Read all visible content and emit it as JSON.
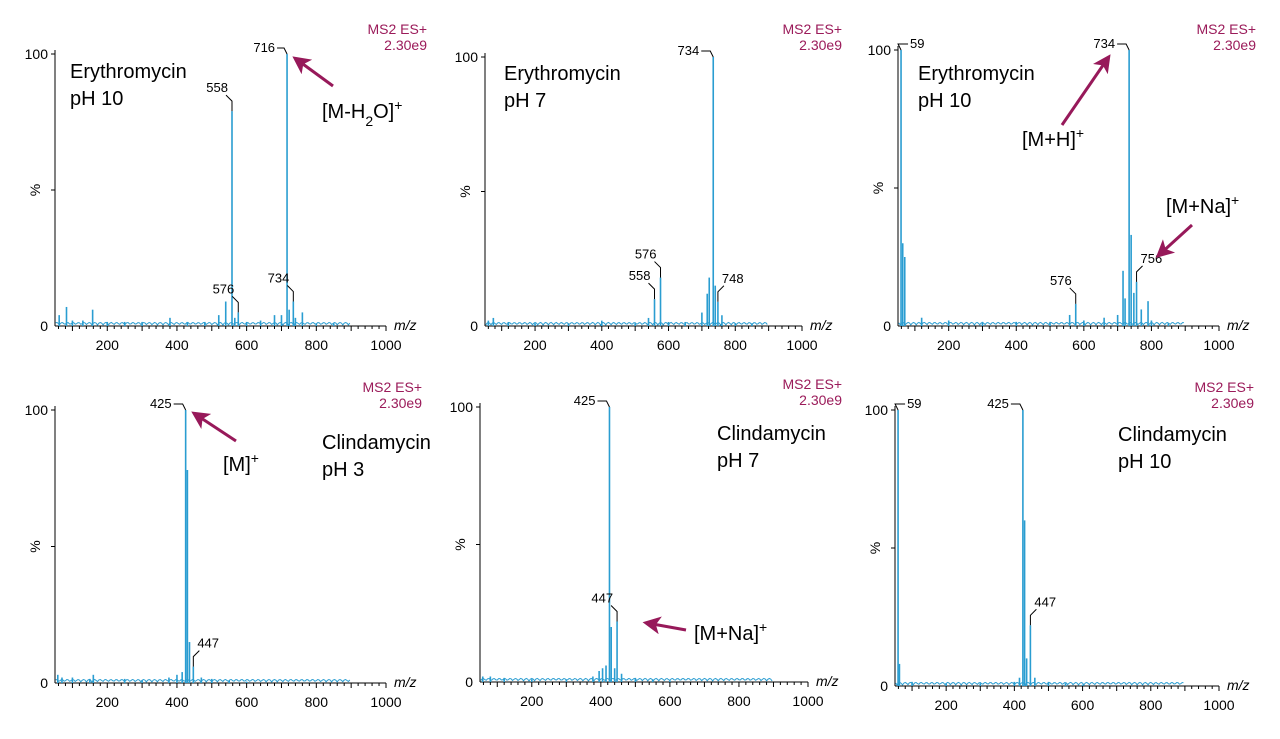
{
  "colors": {
    "trace": "#2a9dd1",
    "accent": "#97195a",
    "axis": "#000000"
  },
  "chart_data": [
    {
      "type": "line",
      "compound": "Erythromycin",
      "condition": "pH 10",
      "mode_label": "MS2 ES+",
      "intensity_label": "2.30e9",
      "xlabel": "m/z",
      "ylabel": "%",
      "xlim": [
        50,
        1000
      ],
      "ylim": [
        0,
        100
      ],
      "x_ticks": [
        200,
        400,
        600,
        800,
        1000
      ],
      "y_ticks": [
        0,
        100
      ],
      "peaks": [
        {
          "x": 62,
          "y": 4
        },
        {
          "x": 83,
          "y": 7
        },
        {
          "x": 100,
          "y": 2
        },
        {
          "x": 130,
          "y": 2
        },
        {
          "x": 158,
          "y": 6
        },
        {
          "x": 200,
          "y": 1.5
        },
        {
          "x": 250,
          "y": 1.5
        },
        {
          "x": 300,
          "y": 1.5
        },
        {
          "x": 380,
          "y": 3
        },
        {
          "x": 430,
          "y": 1.5
        },
        {
          "x": 480,
          "y": 1.5
        },
        {
          "x": 520,
          "y": 4
        },
        {
          "x": 540,
          "y": 9
        },
        {
          "x": 558,
          "y": 79
        },
        {
          "x": 566,
          "y": 3
        },
        {
          "x": 576,
          "y": 5
        },
        {
          "x": 600,
          "y": 1.5
        },
        {
          "x": 640,
          "y": 2
        },
        {
          "x": 680,
          "y": 4
        },
        {
          "x": 700,
          "y": 4
        },
        {
          "x": 716,
          "y": 100
        },
        {
          "x": 722,
          "y": 6
        },
        {
          "x": 734,
          "y": 9
        },
        {
          "x": 740,
          "y": 3
        },
        {
          "x": 760,
          "y": 5
        },
        {
          "x": 800,
          "y": 1
        },
        {
          "x": 850,
          "y": 1
        }
      ],
      "peak_labels": [
        {
          "x": 716,
          "y": 100,
          "text": "716"
        },
        {
          "x": 558,
          "y": 79,
          "text": "558"
        },
        {
          "x": 576,
          "y": 5,
          "text": "576"
        },
        {
          "x": 734,
          "y": 9,
          "text": "734"
        }
      ],
      "annotations": [
        {
          "text": "[M-H",
          "sub": "2",
          "rest": "O]",
          "sup": "+",
          "target_mz": 716,
          "target_y": 100
        }
      ]
    },
    {
      "type": "line",
      "compound": "Erythromycin",
      "condition": "pH 7",
      "mode_label": "MS2 ES+",
      "intensity_label": "2.30e9",
      "xlabel": "m/z",
      "ylabel": "%",
      "xlim": [
        50,
        1000
      ],
      "ylim": [
        0,
        100
      ],
      "x_ticks": [
        200,
        400,
        600,
        800,
        1000
      ],
      "y_ticks": [
        0,
        100
      ],
      "peaks": [
        {
          "x": 60,
          "y": 2
        },
        {
          "x": 75,
          "y": 3
        },
        {
          "x": 120,
          "y": 1.5
        },
        {
          "x": 200,
          "y": 1
        },
        {
          "x": 300,
          "y": 1
        },
        {
          "x": 400,
          "y": 2
        },
        {
          "x": 500,
          "y": 1
        },
        {
          "x": 540,
          "y": 3
        },
        {
          "x": 558,
          "y": 10
        },
        {
          "x": 576,
          "y": 18
        },
        {
          "x": 600,
          "y": 1.5
        },
        {
          "x": 650,
          "y": 1.5
        },
        {
          "x": 700,
          "y": 5
        },
        {
          "x": 716,
          "y": 12
        },
        {
          "x": 722,
          "y": 18
        },
        {
          "x": 734,
          "y": 100
        },
        {
          "x": 740,
          "y": 15
        },
        {
          "x": 748,
          "y": 9
        },
        {
          "x": 760,
          "y": 4
        },
        {
          "x": 800,
          "y": 1
        },
        {
          "x": 850,
          "y": 1
        }
      ],
      "peak_labels": [
        {
          "x": 734,
          "y": 100,
          "text": "734"
        },
        {
          "x": 558,
          "y": 10,
          "text": "558"
        },
        {
          "x": 576,
          "y": 18,
          "text": "576"
        },
        {
          "x": 748,
          "y": 9,
          "text": "748"
        }
      ],
      "annotations": []
    },
    {
      "type": "line",
      "compound": "Erythromycin",
      "condition": "pH 10",
      "mode_label": "MS2 ES+",
      "intensity_label": "2.30e9",
      "xlabel": "m/z",
      "ylabel": "%",
      "xlim": [
        50,
        1000
      ],
      "ylim": [
        0,
        100
      ],
      "x_ticks": [
        200,
        400,
        600,
        800,
        1000
      ],
      "y_ticks": [
        0,
        100
      ],
      "peaks": [
        {
          "x": 59,
          "y": 100
        },
        {
          "x": 64,
          "y": 30
        },
        {
          "x": 70,
          "y": 25
        },
        {
          "x": 120,
          "y": 3
        },
        {
          "x": 200,
          "y": 2
        },
        {
          "x": 300,
          "y": 1.5
        },
        {
          "x": 400,
          "y": 1.5
        },
        {
          "x": 500,
          "y": 1.5
        },
        {
          "x": 558,
          "y": 4
        },
        {
          "x": 576,
          "y": 8
        },
        {
          "x": 600,
          "y": 2
        },
        {
          "x": 660,
          "y": 3
        },
        {
          "x": 700,
          "y": 4
        },
        {
          "x": 716,
          "y": 20
        },
        {
          "x": 722,
          "y": 10
        },
        {
          "x": 734,
          "y": 100
        },
        {
          "x": 740,
          "y": 33
        },
        {
          "x": 748,
          "y": 12
        },
        {
          "x": 756,
          "y": 16
        },
        {
          "x": 770,
          "y": 6
        },
        {
          "x": 790,
          "y": 9
        },
        {
          "x": 800,
          "y": 2
        },
        {
          "x": 850,
          "y": 1
        }
      ],
      "peak_labels": [
        {
          "x": 59,
          "y": 100,
          "text": "59"
        },
        {
          "x": 734,
          "y": 100,
          "text": "734"
        },
        {
          "x": 576,
          "y": 8,
          "text": "576"
        },
        {
          "x": 756,
          "y": 16,
          "text": "756"
        }
      ],
      "annotations": [
        {
          "text": "[M+H]",
          "sub": "",
          "rest": "",
          "sup": "+",
          "target_mz": 734,
          "target_y": 100
        },
        {
          "text": "[M+Na]",
          "sub": "",
          "rest": "",
          "sup": "+",
          "target_mz": 756,
          "target_y": 16
        }
      ]
    },
    {
      "type": "line",
      "compound": "Clindamycin",
      "condition": "pH 3",
      "mode_label": "MS2 ES+",
      "intensity_label": "2.30e9",
      "xlabel": "m/z",
      "ylabel": "%",
      "xlim": [
        50,
        1000
      ],
      "ylim": [
        0,
        100
      ],
      "x_ticks": [
        200,
        400,
        600,
        800,
        1000
      ],
      "y_ticks": [
        0,
        100
      ],
      "peaks": [
        {
          "x": 58,
          "y": 3
        },
        {
          "x": 70,
          "y": 2
        },
        {
          "x": 100,
          "y": 2
        },
        {
          "x": 150,
          "y": 1.5
        },
        {
          "x": 160,
          "y": 3
        },
        {
          "x": 250,
          "y": 1.5
        },
        {
          "x": 300,
          "y": 1
        },
        {
          "x": 377,
          "y": 2
        },
        {
          "x": 400,
          "y": 3
        },
        {
          "x": 415,
          "y": 4
        },
        {
          "x": 425,
          "y": 100
        },
        {
          "x": 430,
          "y": 78
        },
        {
          "x": 436,
          "y": 15
        },
        {
          "x": 447,
          "y": 6
        },
        {
          "x": 470,
          "y": 2
        },
        {
          "x": 500,
          "y": 1.5
        },
        {
          "x": 550,
          "y": 1
        },
        {
          "x": 600,
          "y": 0.5
        }
      ],
      "peak_labels": [
        {
          "x": 425,
          "y": 100,
          "text": "425"
        },
        {
          "x": 447,
          "y": 6,
          "text": "447"
        }
      ],
      "annotations": [
        {
          "text": "[M]",
          "sub": "",
          "rest": "",
          "sup": "+",
          "target_mz": 425,
          "target_y": 100
        }
      ]
    },
    {
      "type": "line",
      "compound": "Clindamycin",
      "condition": "pH 7",
      "mode_label": "MS2 ES+",
      "intensity_label": "2.30e9",
      "xlabel": "m/z",
      "ylabel": "%",
      "xlim": [
        50,
        1000
      ],
      "ylim": [
        0,
        100
      ],
      "x_ticks": [
        200,
        400,
        600,
        800,
        1000
      ],
      "y_ticks": [
        0,
        100
      ],
      "peaks": [
        {
          "x": 58,
          "y": 2
        },
        {
          "x": 80,
          "y": 2
        },
        {
          "x": 120,
          "y": 1.5
        },
        {
          "x": 200,
          "y": 1
        },
        {
          "x": 300,
          "y": 1
        },
        {
          "x": 377,
          "y": 2
        },
        {
          "x": 395,
          "y": 4
        },
        {
          "x": 405,
          "y": 5
        },
        {
          "x": 415,
          "y": 6
        },
        {
          "x": 425,
          "y": 100
        },
        {
          "x": 430,
          "y": 20
        },
        {
          "x": 440,
          "y": 5
        },
        {
          "x": 447,
          "y": 22
        },
        {
          "x": 460,
          "y": 3
        },
        {
          "x": 500,
          "y": 1.5
        },
        {
          "x": 550,
          "y": 1
        },
        {
          "x": 600,
          "y": 0.5
        }
      ],
      "peak_labels": [
        {
          "x": 425,
          "y": 100,
          "text": "425"
        },
        {
          "x": 447,
          "y": 22,
          "text": "447"
        }
      ],
      "annotations": [
        {
          "text": "[M+Na]",
          "sub": "",
          "rest": "",
          "sup": "+",
          "target_mz": 447,
          "target_y": 22
        }
      ]
    },
    {
      "type": "line",
      "compound": "Clindamycin",
      "condition": "pH 10",
      "mode_label": "MS2 ES+",
      "intensity_label": "2.30e9",
      "xlabel": "m/z",
      "ylabel": "%",
      "xlim": [
        50,
        1000
      ],
      "ylim": [
        0,
        100
      ],
      "x_ticks": [
        200,
        400,
        600,
        800,
        1000
      ],
      "y_ticks": [
        0,
        100
      ],
      "peaks": [
        {
          "x": 59,
          "y": 100
        },
        {
          "x": 63,
          "y": 8
        },
        {
          "x": 100,
          "y": 1.5
        },
        {
          "x": 200,
          "y": 1
        },
        {
          "x": 300,
          "y": 1
        },
        {
          "x": 400,
          "y": 1.5
        },
        {
          "x": 415,
          "y": 3
        },
        {
          "x": 425,
          "y": 100
        },
        {
          "x": 430,
          "y": 60
        },
        {
          "x": 436,
          "y": 10
        },
        {
          "x": 447,
          "y": 22
        },
        {
          "x": 460,
          "y": 3
        },
        {
          "x": 500,
          "y": 1.5
        },
        {
          "x": 550,
          "y": 1
        },
        {
          "x": 600,
          "y": 0.5
        }
      ],
      "peak_labels": [
        {
          "x": 59,
          "y": 100,
          "text": "59"
        },
        {
          "x": 425,
          "y": 100,
          "text": "425"
        },
        {
          "x": 447,
          "y": 22,
          "text": "447"
        }
      ],
      "annotations": []
    }
  ]
}
